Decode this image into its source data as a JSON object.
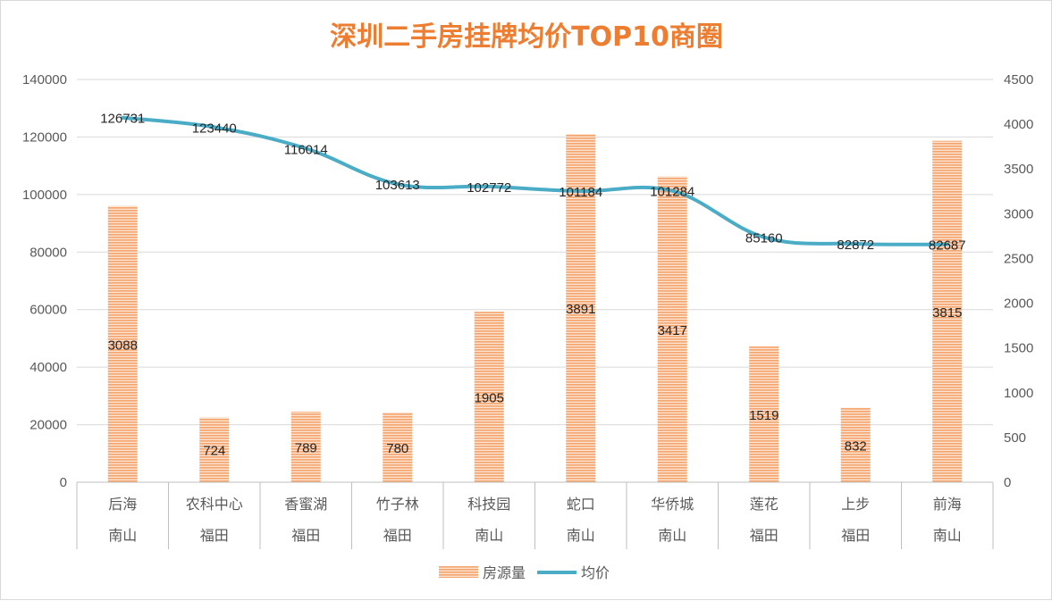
{
  "chart_data": {
    "type": "bar+line",
    "title": "深圳二手房挂牌均价TOP10商圈",
    "categories": [
      "后海",
      "农科中心",
      "香蜜湖",
      "竹子林",
      "科技园",
      "蛇口",
      "华侨城",
      "莲花",
      "上步",
      "前海"
    ],
    "groups": [
      "南山",
      "福田",
      "福田",
      "福田",
      "南山",
      "南山",
      "南山",
      "福田",
      "福田",
      "南山"
    ],
    "series": [
      {
        "name": "房源量",
        "type": "bar",
        "axis": "right",
        "values": [
          3088,
          724,
          789,
          780,
          1905,
          3891,
          3417,
          1519,
          832,
          3815
        ],
        "color": "#f4b183"
      },
      {
        "name": "均价",
        "type": "line",
        "axis": "left",
        "values": [
          126731,
          123440,
          116014,
          103613,
          102772,
          101184,
          101284,
          85160,
          82872,
          82687
        ],
        "color": "#4bacc6"
      }
    ],
    "left_axis": {
      "min": 0,
      "max": 140000,
      "step": 20000
    },
    "right_axis": {
      "min": 0,
      "max": 4500,
      "step": 500
    },
    "grid": true,
    "legend": "bottom"
  }
}
